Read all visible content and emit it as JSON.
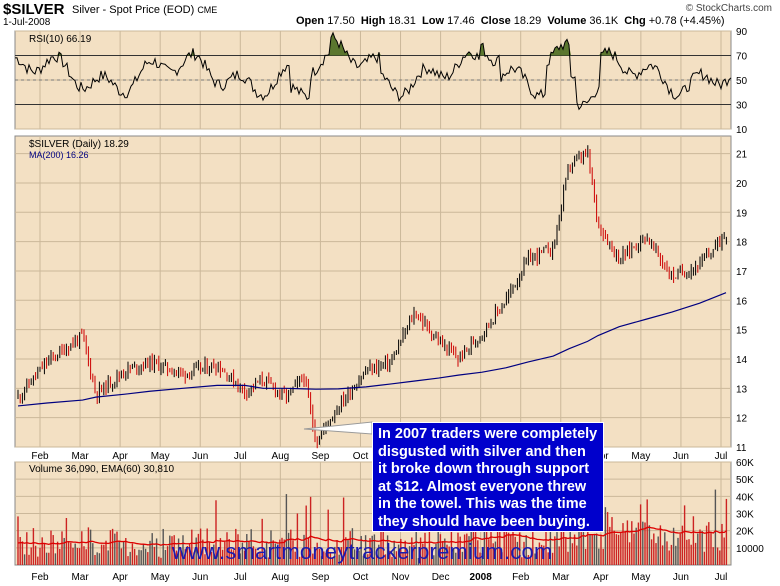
{
  "header": {
    "symbol": "$SILVER",
    "description": "Silver - Spot Price (EOD)",
    "exchange": "CME",
    "date": "1-Jul-2008",
    "brand": "© StockCharts.com",
    "open_label": "Open",
    "open": "17.50",
    "high_label": "High",
    "high": "18.31",
    "low_label": "Low",
    "low": "17.46",
    "close_label": "Close",
    "close": "18.29",
    "volume_label": "Volume",
    "volume": "36.1K",
    "chg_label": "Chg",
    "chg": "+0.78 (+4.45%)"
  },
  "colors": {
    "panel_bg": "#f3e0c3",
    "price_up": "#000000",
    "price_down": "#cc0000",
    "ma": "#000080",
    "rsi_fill": "#4a6b1f",
    "volume_bar": "#cc2222",
    "volume_ema": "#dd0000",
    "annotation_bg": "#0000cc",
    "url_color": "#1a1ab0"
  },
  "rsi_panel": {
    "label": "RSI(10) 66.19",
    "ticks": [
      "90",
      "70",
      "50",
      "30",
      "10"
    ]
  },
  "price_panel": {
    "label": "$SILVER (Daily) 18.29",
    "ma_label": "MA(200) 16.26",
    "ticks": [
      "21",
      "20",
      "19",
      "18",
      "17",
      "16",
      "15",
      "14",
      "13",
      "12",
      "11"
    ]
  },
  "volume_panel": {
    "label": "Volume 36,090, EMA(60) 30,810",
    "ticks": [
      "60K",
      "50K",
      "40K",
      "30K",
      "20K",
      "10000"
    ]
  },
  "x_axis": {
    "price_months": [
      "Feb",
      "Mar",
      "Apr",
      "May",
      "Jun",
      "Jul",
      "Aug",
      "Sep",
      "Oct",
      "Nov",
      "Dec",
      "2008",
      "Feb",
      "Mar",
      "Apr",
      "May",
      "Jun",
      "Jul"
    ],
    "volume_months": [
      "Feb",
      "Mar",
      "Apr",
      "May",
      "Jun",
      "Jul",
      "Aug",
      "Sep",
      "Oct",
      "Nov",
      "Dec",
      "2008",
      "Feb",
      "Mar",
      "Apr",
      "May",
      "Jun",
      "Jul"
    ]
  },
  "annotation": {
    "text": "In 2007 traders were completely disgusted with silver and then it broke down through support at $12. Almost everyone threw in the towel. This was the time they should have been buying."
  },
  "watermark": {
    "text": "www.smartmoneytrackerpremium.com"
  },
  "chart_data": {
    "type": "line",
    "title": "$SILVER (Daily) 18.29",
    "x": [
      "2007-01-10",
      "2007-02-01",
      "2007-02-28",
      "2007-03-10",
      "2007-04-01",
      "2007-04-20",
      "2007-05-15",
      "2007-06-10",
      "2007-07-01",
      "2007-07-15",
      "2007-08-01",
      "2007-08-15",
      "2007-08-24",
      "2007-09-10",
      "2007-10-01",
      "2007-10-20",
      "2007-11-07",
      "2007-11-25",
      "2007-12-10",
      "2007-12-28",
      "2008-01-15",
      "2008-02-01",
      "2008-02-20",
      "2008-03-03",
      "2008-03-17",
      "2008-03-25",
      "2008-04-10",
      "2008-04-30",
      "2008-05-20",
      "2008-06-10",
      "2008-06-30"
    ],
    "series": [
      {
        "values": [
          12.7,
          13.9,
          14.8,
          12.8,
          13.6,
          13.9,
          13.5,
          13.8,
          12.9,
          13.3,
          12.7,
          13.4,
          11.2,
          12.4,
          13.6,
          13.9,
          15.6,
          14.6,
          14.0,
          14.9,
          16.0,
          17.4,
          17.8,
          20.6,
          21.0,
          18.6,
          17.4,
          18.2,
          16.8,
          17.2,
          18.29
        ]
      },
      {
        "name": "MA(200)",
        "values": [
          12.4,
          12.5,
          12.6,
          12.7,
          12.8,
          12.9,
          13.0,
          13.1,
          13.1,
          13.0,
          13.0,
          12.98,
          12.97,
          12.98,
          13.05,
          13.15,
          13.25,
          13.35,
          13.45,
          13.55,
          13.7,
          13.9,
          14.1,
          14.35,
          14.6,
          14.8,
          15.1,
          15.35,
          15.6,
          15.9,
          16.26
        ]
      }
    ],
    "ylabel": "",
    "ylim": [
      11,
      21.6
    ],
    "rsi": {
      "name": "RSI(10)",
      "last": 66.19,
      "levels": [
        70,
        30
      ],
      "ylim": [
        10,
        90
      ]
    },
    "volume": {
      "name": "Volume",
      "last": 36090,
      "ema_name": "EMA(60)",
      "ema_last": 30810,
      "ylim": [
        0,
        60000
      ]
    }
  }
}
